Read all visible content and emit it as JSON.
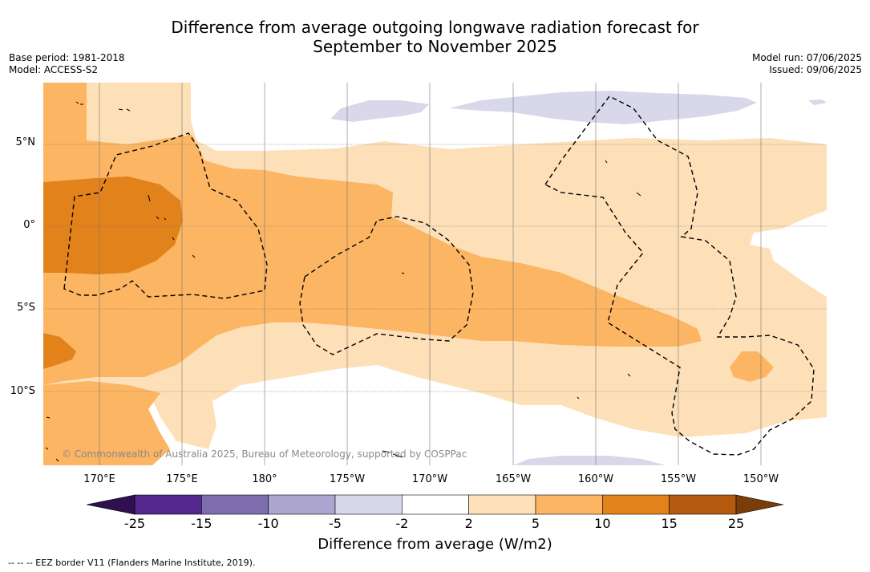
{
  "title_line1": "Difference from average outgoing longwave radiation forecast for",
  "title_line2": "September to November 2025",
  "base_period": "Base period: 1981-2018",
  "model": "Model: ACCESS-S2",
  "model_run": "Model run: 07/06/2025",
  "issued": "Issued: 09/06/2025",
  "copyright": "© Commonwealth of Australia 2025, Bureau of Meteorology, supported by COSPPac",
  "lat_labels": [
    "5°N",
    "0°",
    "5°S",
    "10°S"
  ],
  "lon_labels": [
    "170°E",
    "175°E",
    "180°",
    "175°W",
    "170°W",
    "165°W",
    "160°W",
    "155°W",
    "150°W"
  ],
  "colorbar": {
    "title": "Difference from average (W/m2)",
    "ticks": [
      "-25",
      "-15",
      "-10",
      "-5",
      "-2",
      "2",
      "5",
      "10",
      "15",
      "25"
    ],
    "colors": {
      "below_min": "#2e0f4f",
      "bins": [
        "#54278f",
        "#7d6cae",
        "#aba5d0",
        "#d8d8ea",
        "#ffffff",
        "#fde0b8",
        "#fbb563",
        "#e2821a",
        "#b35a0e"
      ],
      "above_max": "#7a3c08"
    }
  },
  "footnote": "--  --  -- EEZ border V11 (Flanders Marine Institute, 2019)."
}
